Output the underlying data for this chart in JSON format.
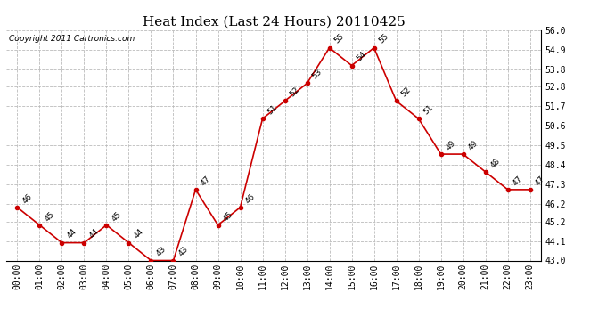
{
  "title": "Heat Index (Last 24 Hours) 20110425",
  "copyright": "Copyright 2011 Cartronics.com",
  "hours": [
    "00:00",
    "01:00",
    "02:00",
    "03:00",
    "04:00",
    "05:00",
    "06:00",
    "07:00",
    "08:00",
    "09:00",
    "10:00",
    "11:00",
    "12:00",
    "13:00",
    "14:00",
    "15:00",
    "16:00",
    "17:00",
    "18:00",
    "19:00",
    "20:00",
    "21:00",
    "22:00",
    "23:00"
  ],
  "values": [
    46,
    45,
    44,
    44,
    45,
    44,
    43,
    43,
    47,
    45,
    46,
    51,
    52,
    53,
    55,
    54,
    55,
    52,
    51,
    49,
    49,
    48,
    47,
    47
  ],
  "ylim_min": 43.0,
  "ylim_max": 56.0,
  "yticks": [
    43.0,
    44.1,
    45.2,
    46.2,
    47.3,
    48.4,
    49.5,
    50.6,
    51.7,
    52.8,
    53.8,
    54.9,
    56.0
  ],
  "line_color": "#cc0000",
  "marker_color": "#cc0000",
  "bg_color": "#ffffff",
  "grid_color": "#bbbbbb",
  "title_fontsize": 11,
  "label_fontsize": 6.5,
  "tick_fontsize": 7,
  "copyright_fontsize": 6.5
}
